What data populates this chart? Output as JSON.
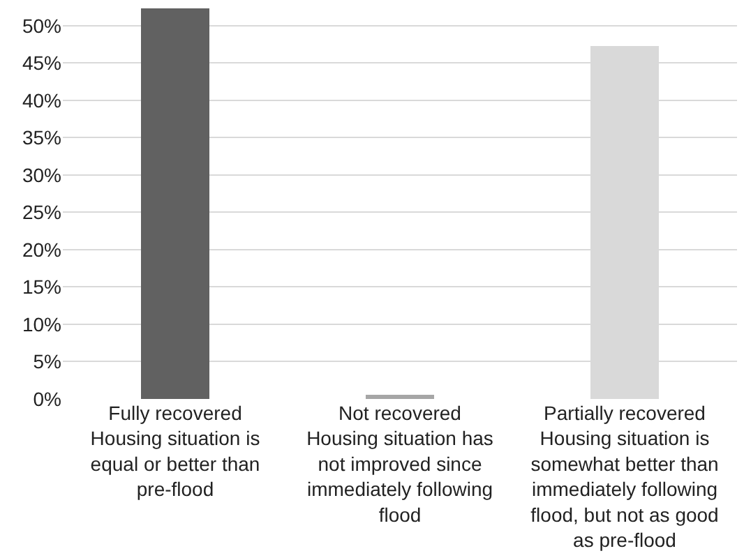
{
  "chart_data": {
    "type": "bar",
    "categories": [
      "Fully recovered\nHousing situation is equal or better than pre-flood",
      "Not recovered\nHousing situation has not improved since immediately following flood",
      "Partially recovered\nHousing situation is somewhat better than immediately following flood, but not as good as pre-flood"
    ],
    "values": [
      52.3,
      0.5,
      47.2
    ],
    "colors": [
      "#616161",
      "#a6a6a6",
      "#d9d9d9"
    ],
    "ylim": [
      0,
      52.5
    ],
    "yticks": [
      {
        "value": 0,
        "label": "0%"
      },
      {
        "value": 5,
        "label": "5%"
      },
      {
        "value": 10,
        "label": "10%"
      },
      {
        "value": 15,
        "label": "15%"
      },
      {
        "value": 20,
        "label": "20%"
      },
      {
        "value": 25,
        "label": "25%"
      },
      {
        "value": 30,
        "label": "30%"
      },
      {
        "value": 35,
        "label": "35%"
      },
      {
        "value": 40,
        "label": "40%"
      },
      {
        "value": 45,
        "label": "45%"
      },
      {
        "value": 50,
        "label": "50%"
      }
    ],
    "grid": "y",
    "legend": false
  }
}
